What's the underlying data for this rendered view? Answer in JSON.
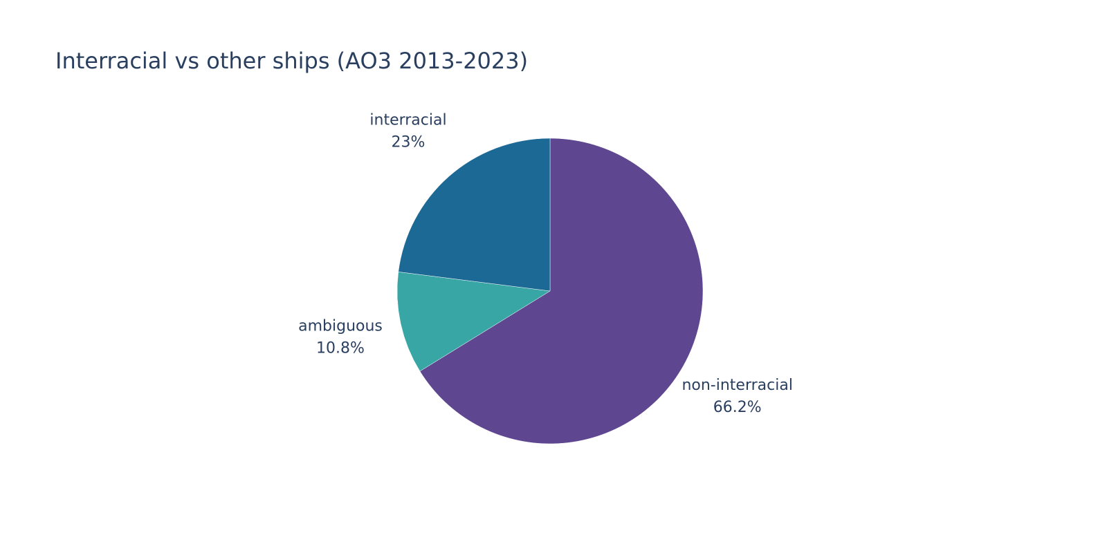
{
  "chart_data": {
    "type": "pie",
    "title": "Interracial vs other ships (AO3 2013-2023)",
    "direction": "clockwise",
    "start_angle_deg": 90,
    "slices": [
      {
        "label": "non-interracial",
        "value": 66.2,
        "value_label": "66.2%",
        "color": "#5e4690"
      },
      {
        "label": "ambiguous",
        "value": 10.8,
        "value_label": "10.8%",
        "color": "#38a6a5"
      },
      {
        "label": "interracial",
        "value": 23.0,
        "value_label": "23%",
        "color": "#1d6995"
      }
    ]
  }
}
